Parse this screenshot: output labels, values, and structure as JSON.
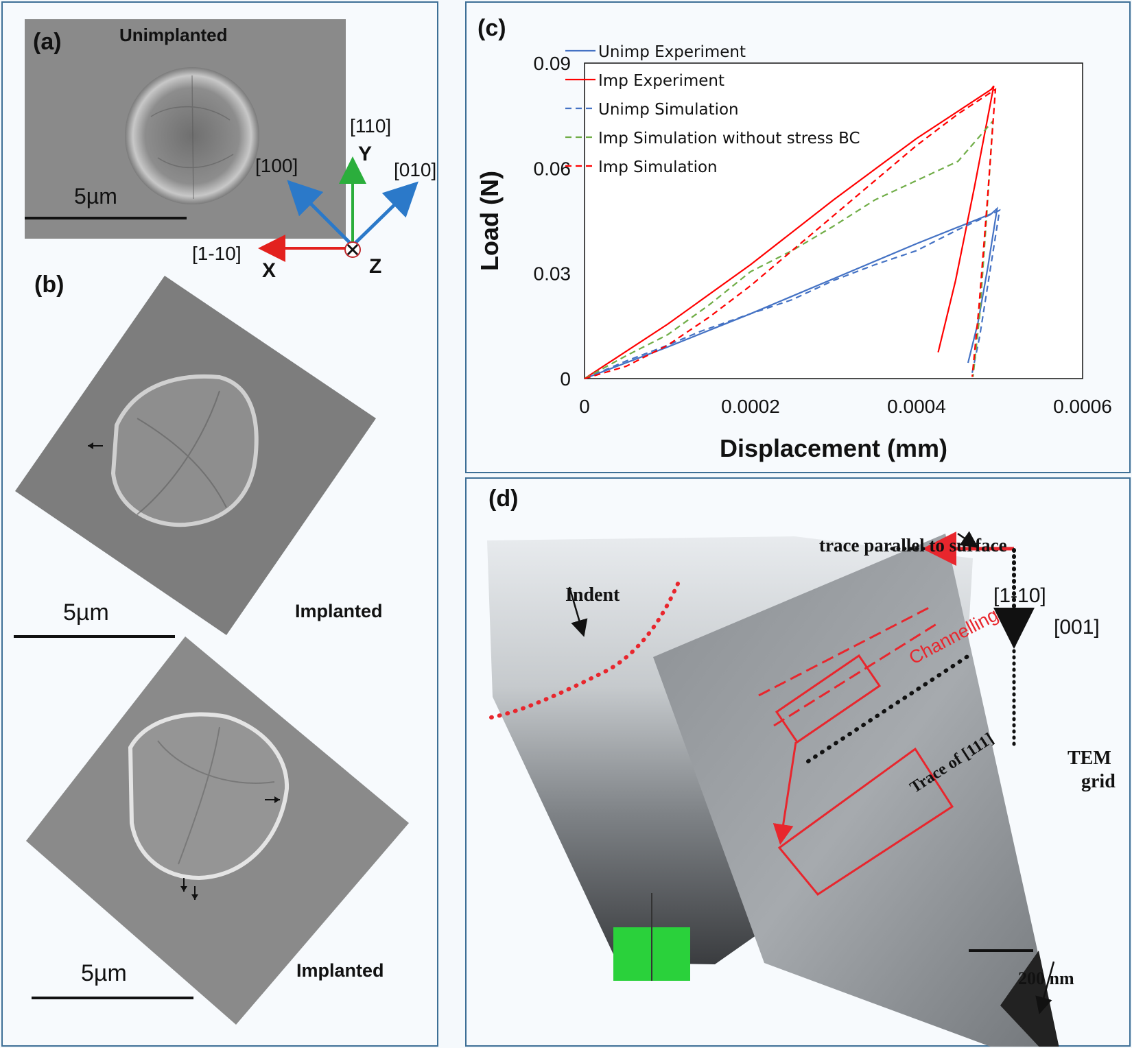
{
  "panel_a": {
    "label": "(a)",
    "caption": "Unimplanted",
    "scale_bar": "5µm",
    "axes": {
      "y_dir": "[110]",
      "y_axis": "Y",
      "left_diag": "[100]",
      "right_diag": "[010]",
      "x_dir": "[1-10]",
      "x_axis": "X",
      "z_axis": "Z"
    }
  },
  "panel_b": {
    "label": "(b)",
    "top": {
      "scale_bar": "5µm",
      "caption": "Implanted"
    },
    "bottom": {
      "scale_bar": "5µm",
      "caption": "Implanted"
    }
  },
  "panel_c": {
    "label": "(c)"
  },
  "panel_d": {
    "label": "(d)",
    "indent_label": "Indent",
    "trace_surface": "trace parallel to surface",
    "dir_1": "[1-10]",
    "dir_2": "[001]",
    "channelling": "Channelling",
    "trace_111": "Trace of [111]",
    "tem_grid_1": "TEM",
    "tem_grid_2": "grid",
    "scale_bar": "200 nm"
  },
  "colors": {
    "frame": "#3d6f96",
    "blue": "#4472c4",
    "red": "#ff0000",
    "green": "#70ad47",
    "panel_red": "#e8262d"
  },
  "chart_data": {
    "type": "line",
    "title": "",
    "xlabel": "Displacement (mm)",
    "ylabel": "Load (N)",
    "xlim": [
      0,
      0.0006
    ],
    "ylim": [
      0,
      0.09
    ],
    "x_ticks": [
      "0",
      "0.0002",
      "0.0004",
      "0.0006"
    ],
    "y_ticks": [
      "0",
      "0.03",
      "0.06",
      "0.09"
    ],
    "grid": false,
    "legend_position": "top-left",
    "series": [
      {
        "name": "Unimp Experiment",
        "color": "#4472c4",
        "dash": false,
        "x": [
          0,
          0.0001,
          0.0002,
          0.0003,
          0.0004,
          0.00049,
          0.000497,
          0.000486,
          0.000474,
          0.000462
        ],
        "y": [
          0,
          0.009,
          0.0185,
          0.0285,
          0.0385,
          0.047,
          0.0485,
          0.032,
          0.016,
          0.0045
        ]
      },
      {
        "name": "Imp Experiment",
        "color": "#ff0000",
        "dash": false,
        "x": [
          0,
          0.0001,
          0.0002,
          0.0003,
          0.0004,
          0.00049,
          0.000493,
          0.00047,
          0.000447,
          0.000426
        ],
        "y": [
          0,
          0.0155,
          0.0325,
          0.051,
          0.0685,
          0.0825,
          0.0835,
          0.055,
          0.028,
          0.0075
        ]
      },
      {
        "name": "Unimp Simulation",
        "color": "#4472c4",
        "dash": true,
        "x": [
          0,
          5e-05,
          0.0001,
          0.00014,
          0.0002,
          0.00025,
          0.0003,
          0.00035,
          0.0004,
          0.00045,
          0.0005,
          0.000488,
          0.000476,
          0.000466
        ],
        "y": [
          0,
          0.005,
          0.0095,
          0.0135,
          0.0185,
          0.0225,
          0.028,
          0.0325,
          0.0365,
          0.0425,
          0.048,
          0.03,
          0.012,
          0.0005
        ]
      },
      {
        "name": "Imp Simulation without stress BC",
        "color": "#70ad47",
        "dash": true,
        "x": [
          0,
          5e-05,
          0.0001,
          0.00015,
          0.0002,
          0.00025,
          0.0003,
          0.00035,
          0.0004,
          0.00045,
          0.000492,
          0.000484,
          0.000476,
          0.000468
        ],
        "y": [
          0,
          0.0065,
          0.0125,
          0.021,
          0.0305,
          0.0365,
          0.0435,
          0.051,
          0.0565,
          0.062,
          0.0735,
          0.045,
          0.018,
          0.0005
        ]
      },
      {
        "name": "Imp Simulation",
        "color": "#ff0000",
        "dash": true,
        "x": [
          0,
          5e-05,
          0.0001,
          0.00015,
          0.0002,
          0.00025,
          0.0003,
          0.00035,
          0.0004,
          0.00045,
          0.000495,
          0.000485,
          0.000475,
          0.000467
        ],
        "y": [
          0,
          0.0035,
          0.0095,
          0.0175,
          0.0265,
          0.0365,
          0.0465,
          0.0565,
          0.0665,
          0.0755,
          0.0825,
          0.05,
          0.02,
          0.0005
        ]
      }
    ]
  }
}
